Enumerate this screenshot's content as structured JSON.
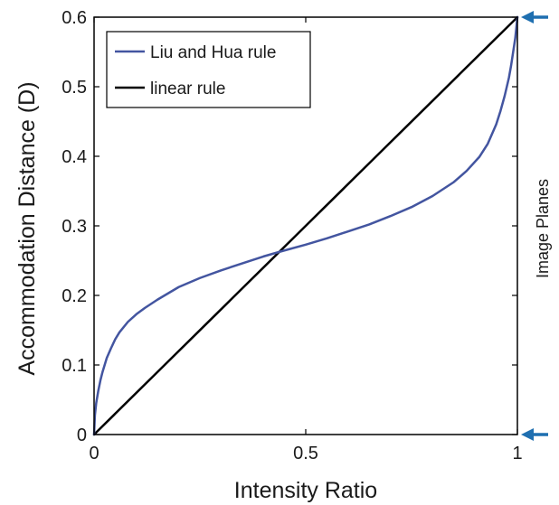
{
  "chart_data": {
    "type": "line",
    "title": "",
    "xlabel": "Intensity Ratio",
    "ylabel": "Accommodation Distance (D)",
    "xlim": [
      0,
      1
    ],
    "ylim": [
      0,
      0.6
    ],
    "xticks": [
      {
        "value": 0,
        "label": "0"
      },
      {
        "value": 0.5,
        "label": "0.5"
      },
      {
        "value": 1,
        "label": "1"
      }
    ],
    "yticks": [
      {
        "value": 0,
        "label": "0"
      },
      {
        "value": 0.1,
        "label": "0.1"
      },
      {
        "value": 0.2,
        "label": "0.2"
      },
      {
        "value": 0.3,
        "label": "0.3"
      },
      {
        "value": 0.4,
        "label": "0.4"
      },
      {
        "value": 0.5,
        "label": "0.5"
      },
      {
        "value": 0.6,
        "label": "0.6"
      }
    ],
    "grid": false,
    "legend_position": "top-left",
    "series": [
      {
        "name": "Liu and Hua rule",
        "color": "#4355a0",
        "x": [
          0,
          0.002,
          0.005,
          0.01,
          0.015,
          0.02,
          0.03,
          0.04,
          0.05,
          0.06,
          0.08,
          0.1,
          0.12,
          0.15,
          0.2,
          0.25,
          0.3,
          0.35,
          0.4,
          0.44,
          0.5,
          0.55,
          0.6,
          0.65,
          0.7,
          0.75,
          0.8,
          0.85,
          0.88,
          0.91,
          0.93,
          0.95,
          0.96,
          0.97,
          0.98,
          0.985,
          0.99,
          0.995,
          1
        ],
        "y": [
          0,
          0.028,
          0.045,
          0.063,
          0.078,
          0.09,
          0.11,
          0.124,
          0.137,
          0.147,
          0.162,
          0.173,
          0.182,
          0.194,
          0.212,
          0.225,
          0.236,
          0.246,
          0.256,
          0.263,
          0.273,
          0.282,
          0.292,
          0.302,
          0.314,
          0.327,
          0.343,
          0.363,
          0.379,
          0.399,
          0.418,
          0.446,
          0.465,
          0.487,
          0.513,
          0.53,
          0.55,
          0.57,
          0.6
        ]
      },
      {
        "name": "linear rule",
        "color": "#000000",
        "x": [
          0,
          1
        ],
        "y": [
          0,
          0.6
        ]
      }
    ],
    "annotations": [
      {
        "text": "Image Planes",
        "position": "right"
      }
    ],
    "markers": [
      {
        "type": "arrow",
        "name": "upper-image-plane",
        "y": 0.6,
        "color": "#1f6fb0"
      },
      {
        "type": "arrow",
        "name": "lower-image-plane",
        "y": 0,
        "color": "#1f6fb0"
      }
    ]
  }
}
